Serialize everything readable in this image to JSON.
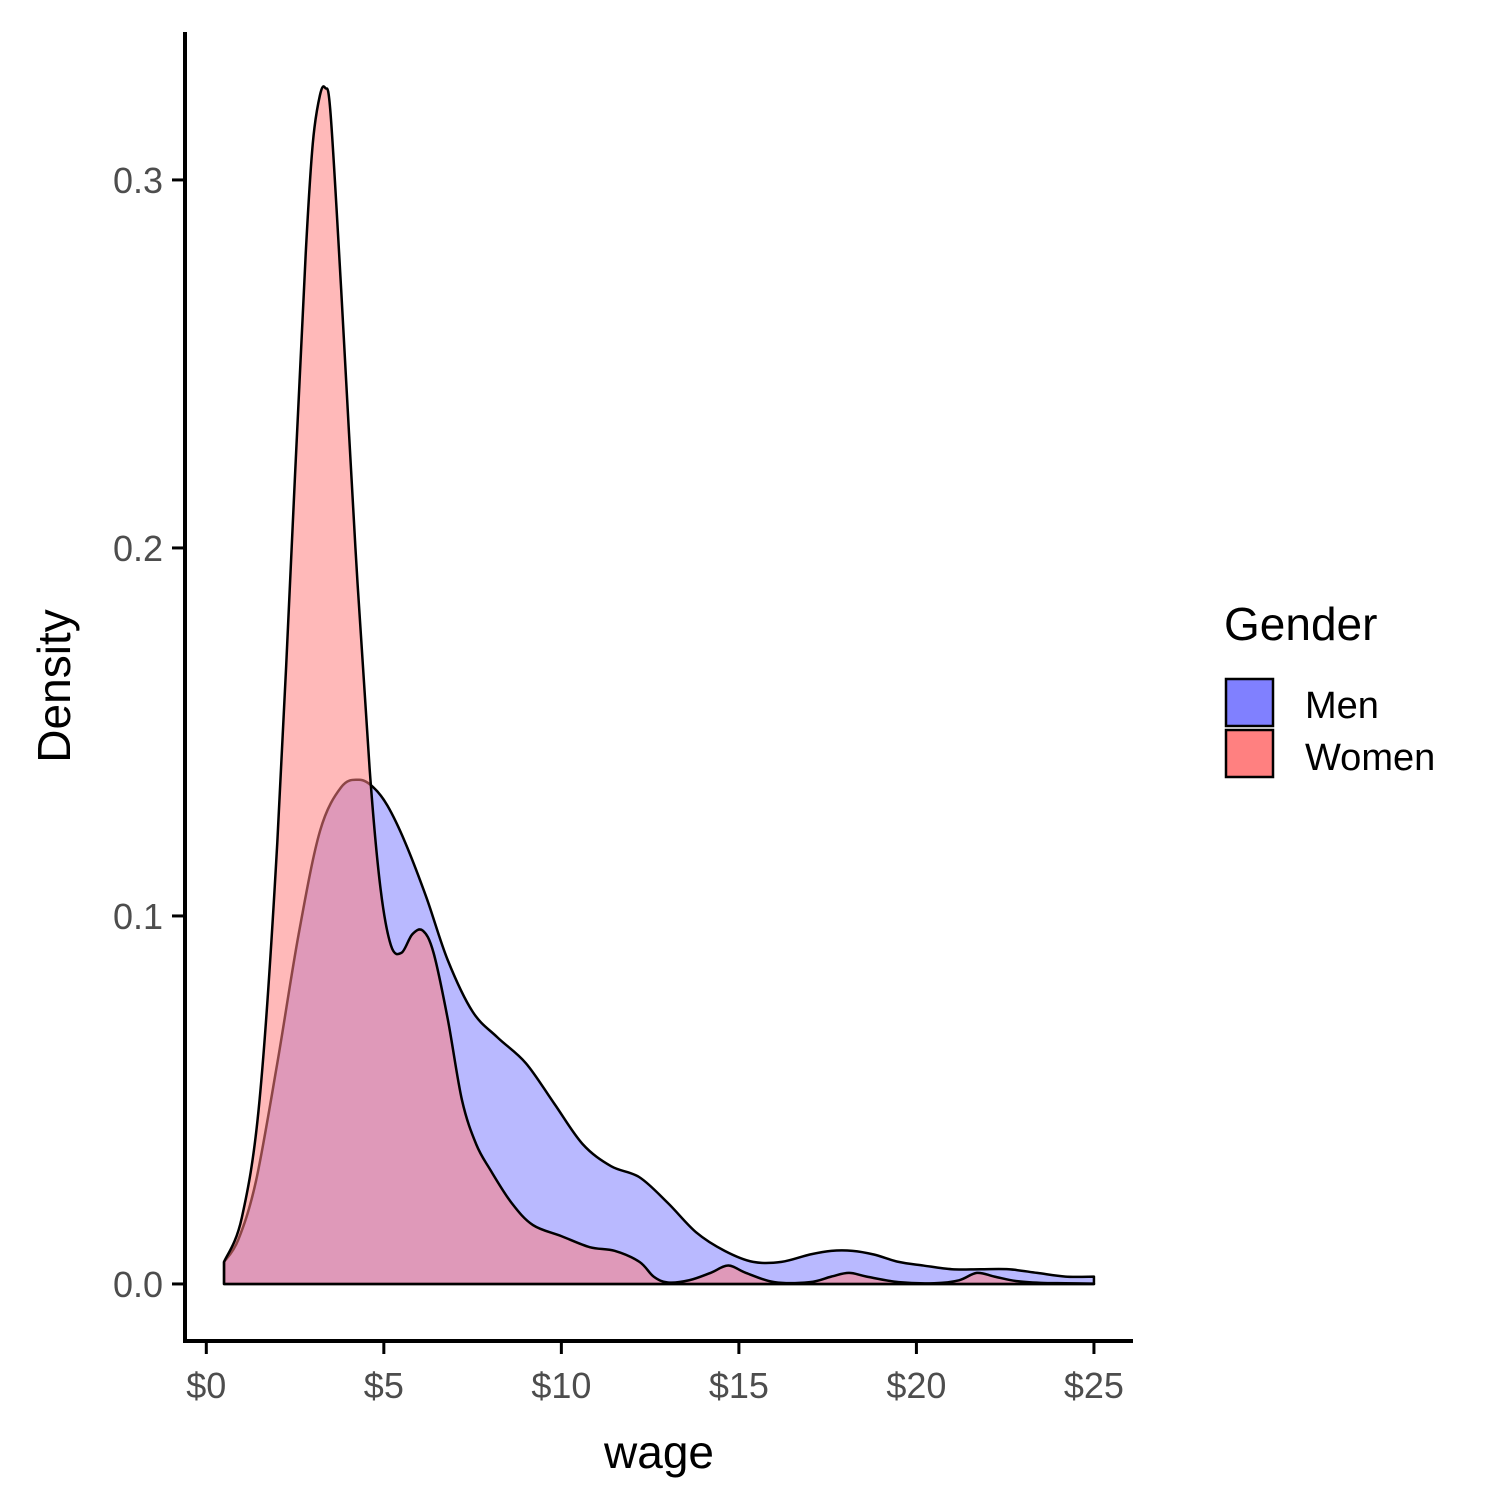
{
  "chart_data": {
    "type": "area",
    "xlabel": "wage",
    "ylabel": "Density",
    "xlim": [
      -0.6,
      26.1
    ],
    "ylim": [
      -0.0155,
      0.3402
    ],
    "x_ticks": [
      0,
      5,
      10,
      15,
      20,
      25
    ],
    "x_tick_labels": [
      "$0",
      "$5",
      "$10",
      "$15",
      "$20",
      "$25"
    ],
    "y_ticks": [
      0.0,
      0.1,
      0.2,
      0.3
    ],
    "y_tick_labels": [
      "0.0",
      "0.1",
      "0.2",
      "0.3"
    ],
    "grid": false,
    "legend": {
      "title": "Gender",
      "placement": "right",
      "entries": [
        {
          "label": "Men",
          "color": "#8080ff"
        },
        {
          "label": "Women",
          "color": "#ff8080"
        }
      ]
    },
    "series": [
      {
        "name": "Men",
        "color": "#8080ff",
        "x": [
          0.5,
          0.9,
          1.4,
          2.0,
          2.6,
          3.2,
          3.8,
          4.3,
          4.7,
          5.1,
          5.6,
          6.2,
          6.8,
          7.5,
          8.2,
          9.0,
          9.8,
          10.6,
          11.4,
          12.2,
          13.0,
          13.8,
          14.6,
          15.4,
          16.2,
          17.0,
          17.6,
          18.2,
          18.8,
          19.5,
          20.2,
          21.0,
          21.8,
          22.6,
          23.4,
          24.2,
          25.0
        ],
        "y": [
          0.006,
          0.012,
          0.028,
          0.06,
          0.095,
          0.123,
          0.135,
          0.137,
          0.135,
          0.13,
          0.12,
          0.105,
          0.088,
          0.074,
          0.067,
          0.06,
          0.049,
          0.038,
          0.032,
          0.029,
          0.022,
          0.014,
          0.009,
          0.006,
          0.006,
          0.008,
          0.009,
          0.009,
          0.008,
          0.006,
          0.005,
          0.004,
          0.004,
          0.004,
          0.003,
          0.002,
          0.002
        ]
      },
      {
        "name": "Women",
        "color": "#ff8080",
        "x": [
          0.5,
          1.0,
          1.5,
          2.0,
          2.5,
          2.8,
          3.0,
          3.2,
          3.35,
          3.5,
          3.8,
          4.2,
          4.6,
          4.9,
          5.2,
          5.5,
          5.8,
          6.1,
          6.4,
          6.8,
          7.2,
          7.6,
          8.0,
          8.6,
          9.2,
          10.0,
          10.8,
          11.5,
          12.2,
          12.6,
          13.0,
          13.6,
          14.2,
          14.7,
          15.2,
          16.0,
          17.0,
          17.6,
          18.1,
          18.6,
          19.5,
          20.5,
          21.2,
          21.7,
          22.2,
          22.8,
          23.5,
          24.2,
          25.0
        ],
        "y": [
          0.006,
          0.018,
          0.05,
          0.12,
          0.22,
          0.28,
          0.31,
          0.323,
          0.325,
          0.318,
          0.27,
          0.2,
          0.14,
          0.108,
          0.092,
          0.09,
          0.095,
          0.096,
          0.09,
          0.072,
          0.05,
          0.038,
          0.031,
          0.022,
          0.016,
          0.013,
          0.01,
          0.009,
          0.006,
          0.002,
          0.0004,
          0.001,
          0.003,
          0.005,
          0.003,
          0.0005,
          0.0005,
          0.002,
          0.003,
          0.002,
          0.0005,
          0.0002,
          0.001,
          0.003,
          0.002,
          0.0008,
          0.0003,
          0.0002,
          0.0001
        ]
      }
    ]
  }
}
